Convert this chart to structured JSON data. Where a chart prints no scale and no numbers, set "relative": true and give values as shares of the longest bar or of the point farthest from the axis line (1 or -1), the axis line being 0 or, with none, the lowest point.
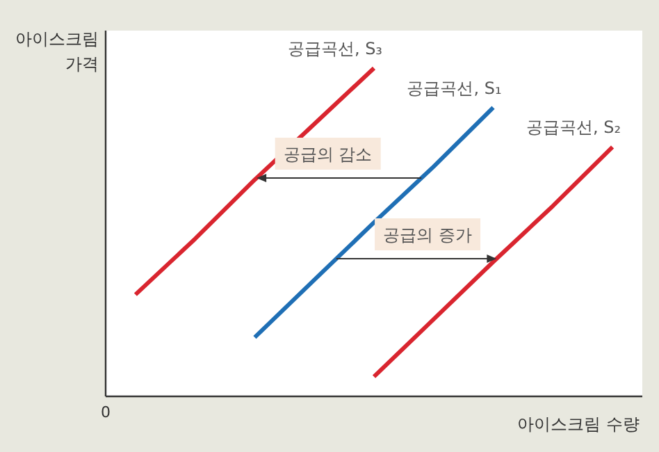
{
  "chart_data": {
    "type": "line",
    "relative": true,
    "xlabel": "아이스크림 수량",
    "ylabel": "아이스크림 가격",
    "line_style": "solid",
    "categories": [
      null,
      null,
      null,
      null,
      null,
      null,
      null,
      null,
      null
    ],
    "series": [
      {
        "name": "공급곡선, S₃",
        "color": "#d9252f",
        "values": [
          0.31,
          0.48,
          0.66,
          0.83,
          1.0,
          null,
          null,
          null,
          null
        ]
      },
      {
        "name": "공급곡선, S₁",
        "color": "#1f6fb5",
        "values": [
          null,
          null,
          0.18,
          0.355,
          0.53,
          0.7,
          0.88,
          null,
          null
        ]
      },
      {
        "name": "공급곡선, S₂",
        "color": "#d9252f",
        "values": [
          null,
          null,
          null,
          null,
          0.06,
          0.235,
          0.41,
          0.58,
          0.76
        ]
      }
    ],
    "annotations": [
      "0",
      "공급의 감소",
      "공급의 증가"
    ]
  }
}
